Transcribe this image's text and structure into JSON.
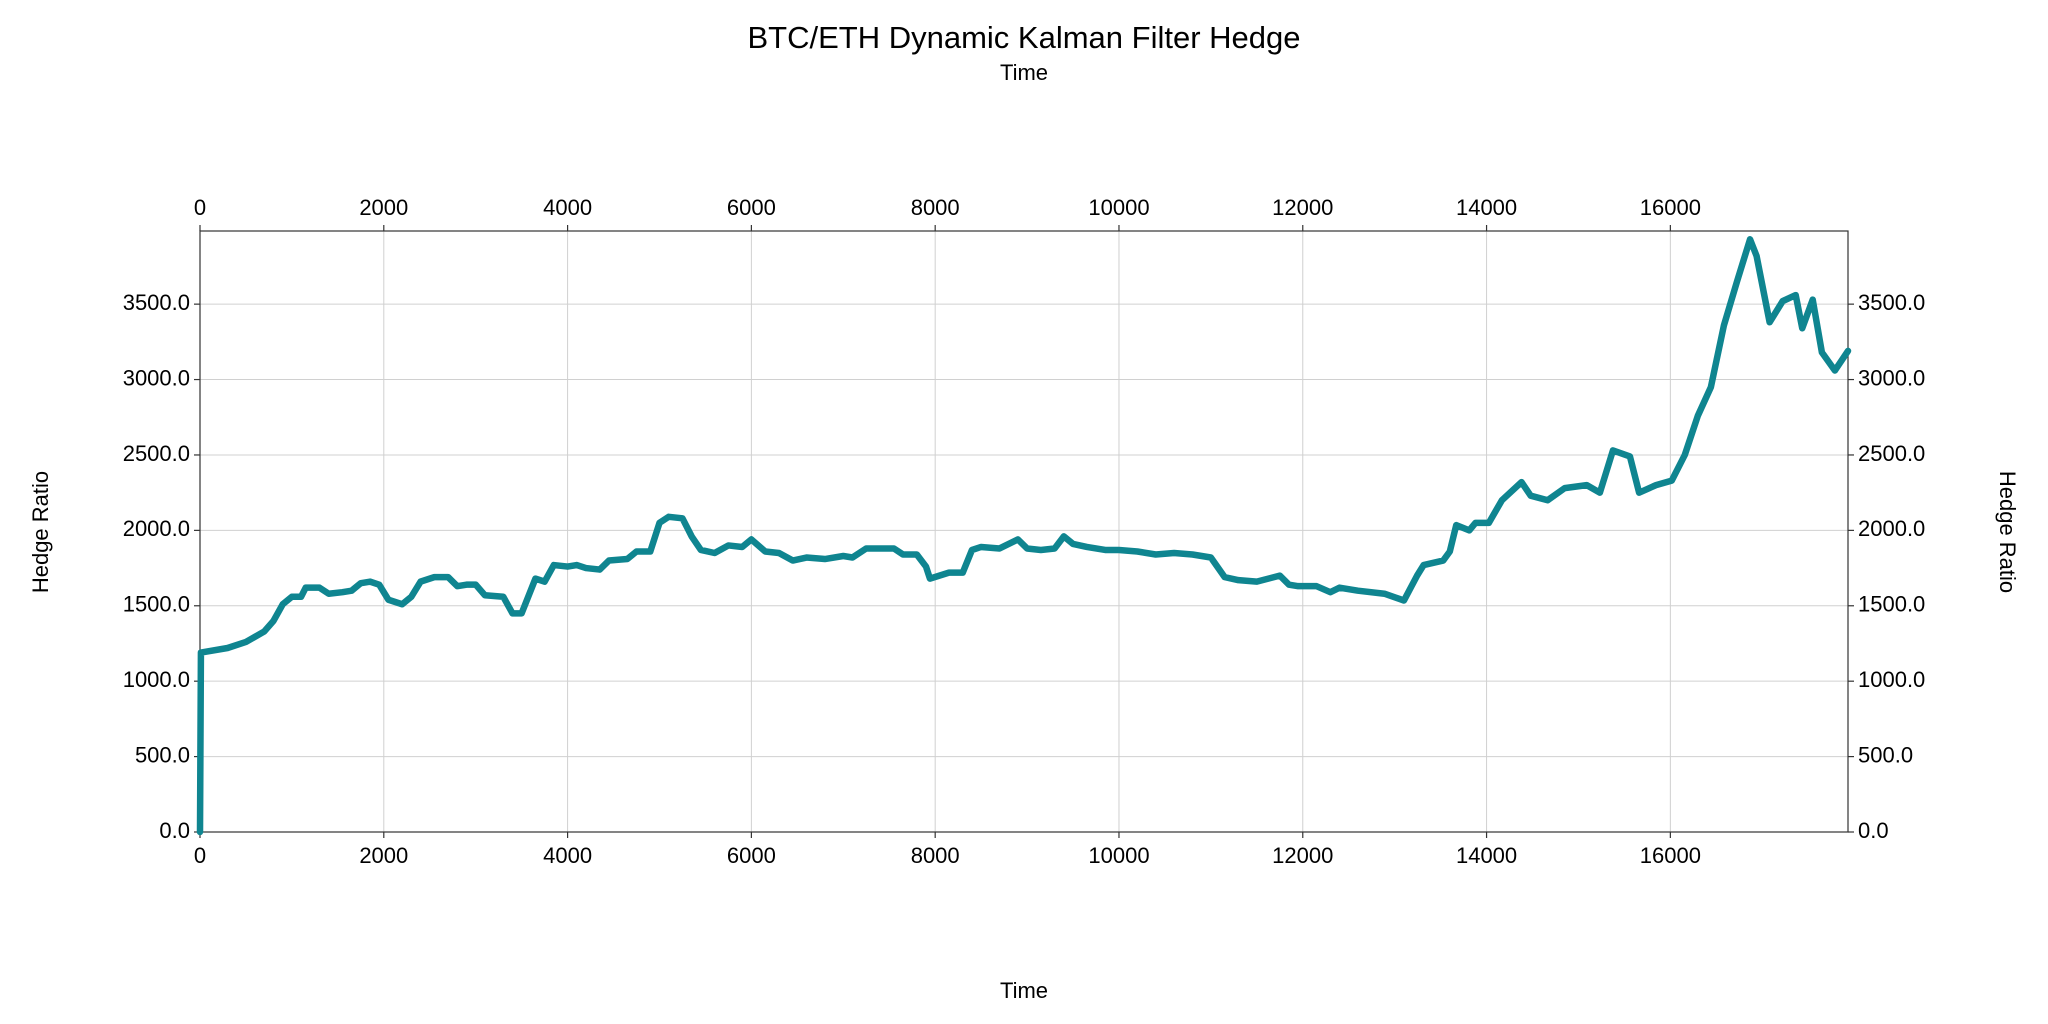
{
  "chart_data": {
    "type": "line",
    "title": "BTC/ETH Dynamic Kalman Filter Hedge",
    "top_xlabel": "Time",
    "xlabel": "Time",
    "ylabel": "Hedge Ratio",
    "y2label": "Hedge Ratio",
    "grid": true,
    "xlim": [
      0,
      17933
    ],
    "ylim": [
      0,
      3985
    ],
    "xticks": [
      0,
      2000,
      4000,
      6000,
      8000,
      10000,
      12000,
      14000,
      16000
    ],
    "yticks": [
      {
        "value": 0,
        "label": "0.0"
      },
      {
        "value": 500,
        "label": "500.0"
      },
      {
        "value": 1000,
        "label": "1000.0"
      },
      {
        "value": 1500,
        "label": "1500.0"
      },
      {
        "value": 2000,
        "label": "2000.0"
      },
      {
        "value": 2500,
        "label": "2500.0"
      },
      {
        "value": 3000,
        "label": "3000.0"
      },
      {
        "value": 3500,
        "label": "3500.0"
      }
    ],
    "series": [
      {
        "name": "Hedge Ratio",
        "color": "#0f8590",
        "x": [
          0,
          10,
          300,
          500,
          700,
          800,
          900,
          1000,
          1100,
          1150,
          1300,
          1400,
          1550,
          1650,
          1750,
          1850,
          1950,
          2050,
          2200,
          2300,
          2400,
          2550,
          2700,
          2800,
          2900,
          3000,
          3100,
          3300,
          3400,
          3500,
          3650,
          3750,
          3850,
          4000,
          4100,
          4200,
          4350,
          4450,
          4650,
          4750,
          4900,
          5000,
          5100,
          5250,
          5350,
          5450,
          5600,
          5750,
          5900,
          6000,
          6150,
          6300,
          6450,
          6600,
          6800,
          7000,
          7100,
          7250,
          7400,
          7550,
          7650,
          7800,
          7900,
          7943,
          8150,
          8300,
          8400,
          8500,
          8700,
          8900,
          9000,
          9150,
          9300,
          9400,
          9500,
          9650,
          9850,
          10000,
          10200,
          10400,
          10600,
          10800,
          11000,
          11150,
          11300,
          11500,
          11750,
          11850,
          11950,
          12150,
          12300,
          12400,
          12600,
          12889,
          13101,
          13244,
          13315,
          13528,
          13600,
          13670,
          13812,
          13880,
          14025,
          14167,
          14380,
          14480,
          14665,
          14850,
          15090,
          15233,
          15375,
          15560,
          15660,
          15844,
          16015,
          16157,
          16299,
          16441,
          16583,
          16725,
          16867,
          16938,
          17009,
          17080,
          17222,
          17364,
          17435,
          17549,
          17649,
          17790,
          17933
        ],
        "values": [
          0,
          1190,
          1220,
          1260,
          1330,
          1400,
          1510,
          1560,
          1560,
          1620,
          1620,
          1580,
          1590,
          1600,
          1650,
          1660,
          1640,
          1540,
          1510,
          1560,
          1660,
          1690,
          1690,
          1630,
          1640,
          1640,
          1570,
          1560,
          1450,
          1450,
          1680,
          1660,
          1770,
          1760,
          1770,
          1750,
          1740,
          1800,
          1810,
          1860,
          1860,
          2050,
          2090,
          2080,
          1960,
          1870,
          1850,
          1900,
          1890,
          1940,
          1860,
          1850,
          1800,
          1820,
          1810,
          1830,
          1820,
          1880,
          1880,
          1880,
          1840,
          1840,
          1760,
          1680,
          1720,
          1720,
          1870,
          1890,
          1880,
          1940,
          1880,
          1870,
          1880,
          1960,
          1910,
          1890,
          1870,
          1870,
          1860,
          1840,
          1850,
          1840,
          1820,
          1690,
          1670,
          1660,
          1700,
          1640,
          1630,
          1630,
          1590,
          1620,
          1600,
          1580,
          1535,
          1700,
          1770,
          1800,
          1860,
          2035,
          2000,
          2050,
          2050,
          2200,
          2320,
          2230,
          2200,
          2280,
          2300,
          2250,
          2530,
          2490,
          2250,
          2300,
          2330,
          2500,
          2760,
          2950,
          3360,
          3650,
          3930,
          3820,
          3600,
          3380,
          3520,
          3560,
          3340,
          3530,
          3180,
          3060,
          3190
        ]
      }
    ]
  }
}
